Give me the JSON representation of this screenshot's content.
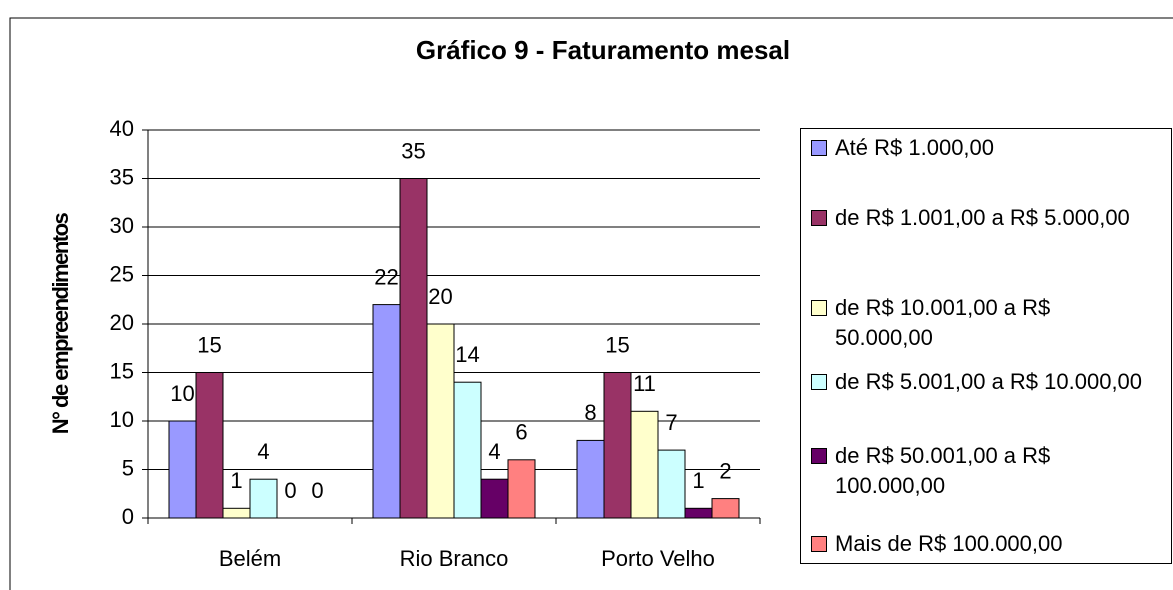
{
  "chart_data": {
    "type": "bar",
    "title": "Gráfico 9 - Faturamento mesal",
    "y_label": "N° de empreendimentos",
    "categories": [
      "Belém",
      "Rio Branco",
      "Porto Velho"
    ],
    "series": [
      {
        "name": "Até R$ 1.000,00",
        "color": "#9999ff",
        "values": [
          10,
          22,
          8
        ]
      },
      {
        "name": "de R$ 1.001,00 a R$ 5.000,00",
        "color": "#993366",
        "values": [
          15,
          35,
          15
        ]
      },
      {
        "name": "de R$ 10.001,00 a R$ 50.000,00",
        "color": "#ffffcc",
        "values": [
          1,
          20,
          11
        ]
      },
      {
        "name": "de R$ 5.001,00 a R$ 10.000,00",
        "color": "#ccffff",
        "values": [
          4,
          14,
          7
        ]
      },
      {
        "name": "de R$ 50.001,00 a R$ 100.000,00",
        "color": "#660066",
        "values": [
          0,
          4,
          1
        ]
      },
      {
        "name": "Mais de R$ 100.000,00",
        "color": "#ff8080",
        "values": [
          0,
          6,
          2
        ]
      }
    ],
    "ylim": [
      0,
      40
    ],
    "yticks": [
      0,
      5,
      10,
      15,
      20,
      25,
      30,
      35,
      40
    ],
    "grid": true
  }
}
